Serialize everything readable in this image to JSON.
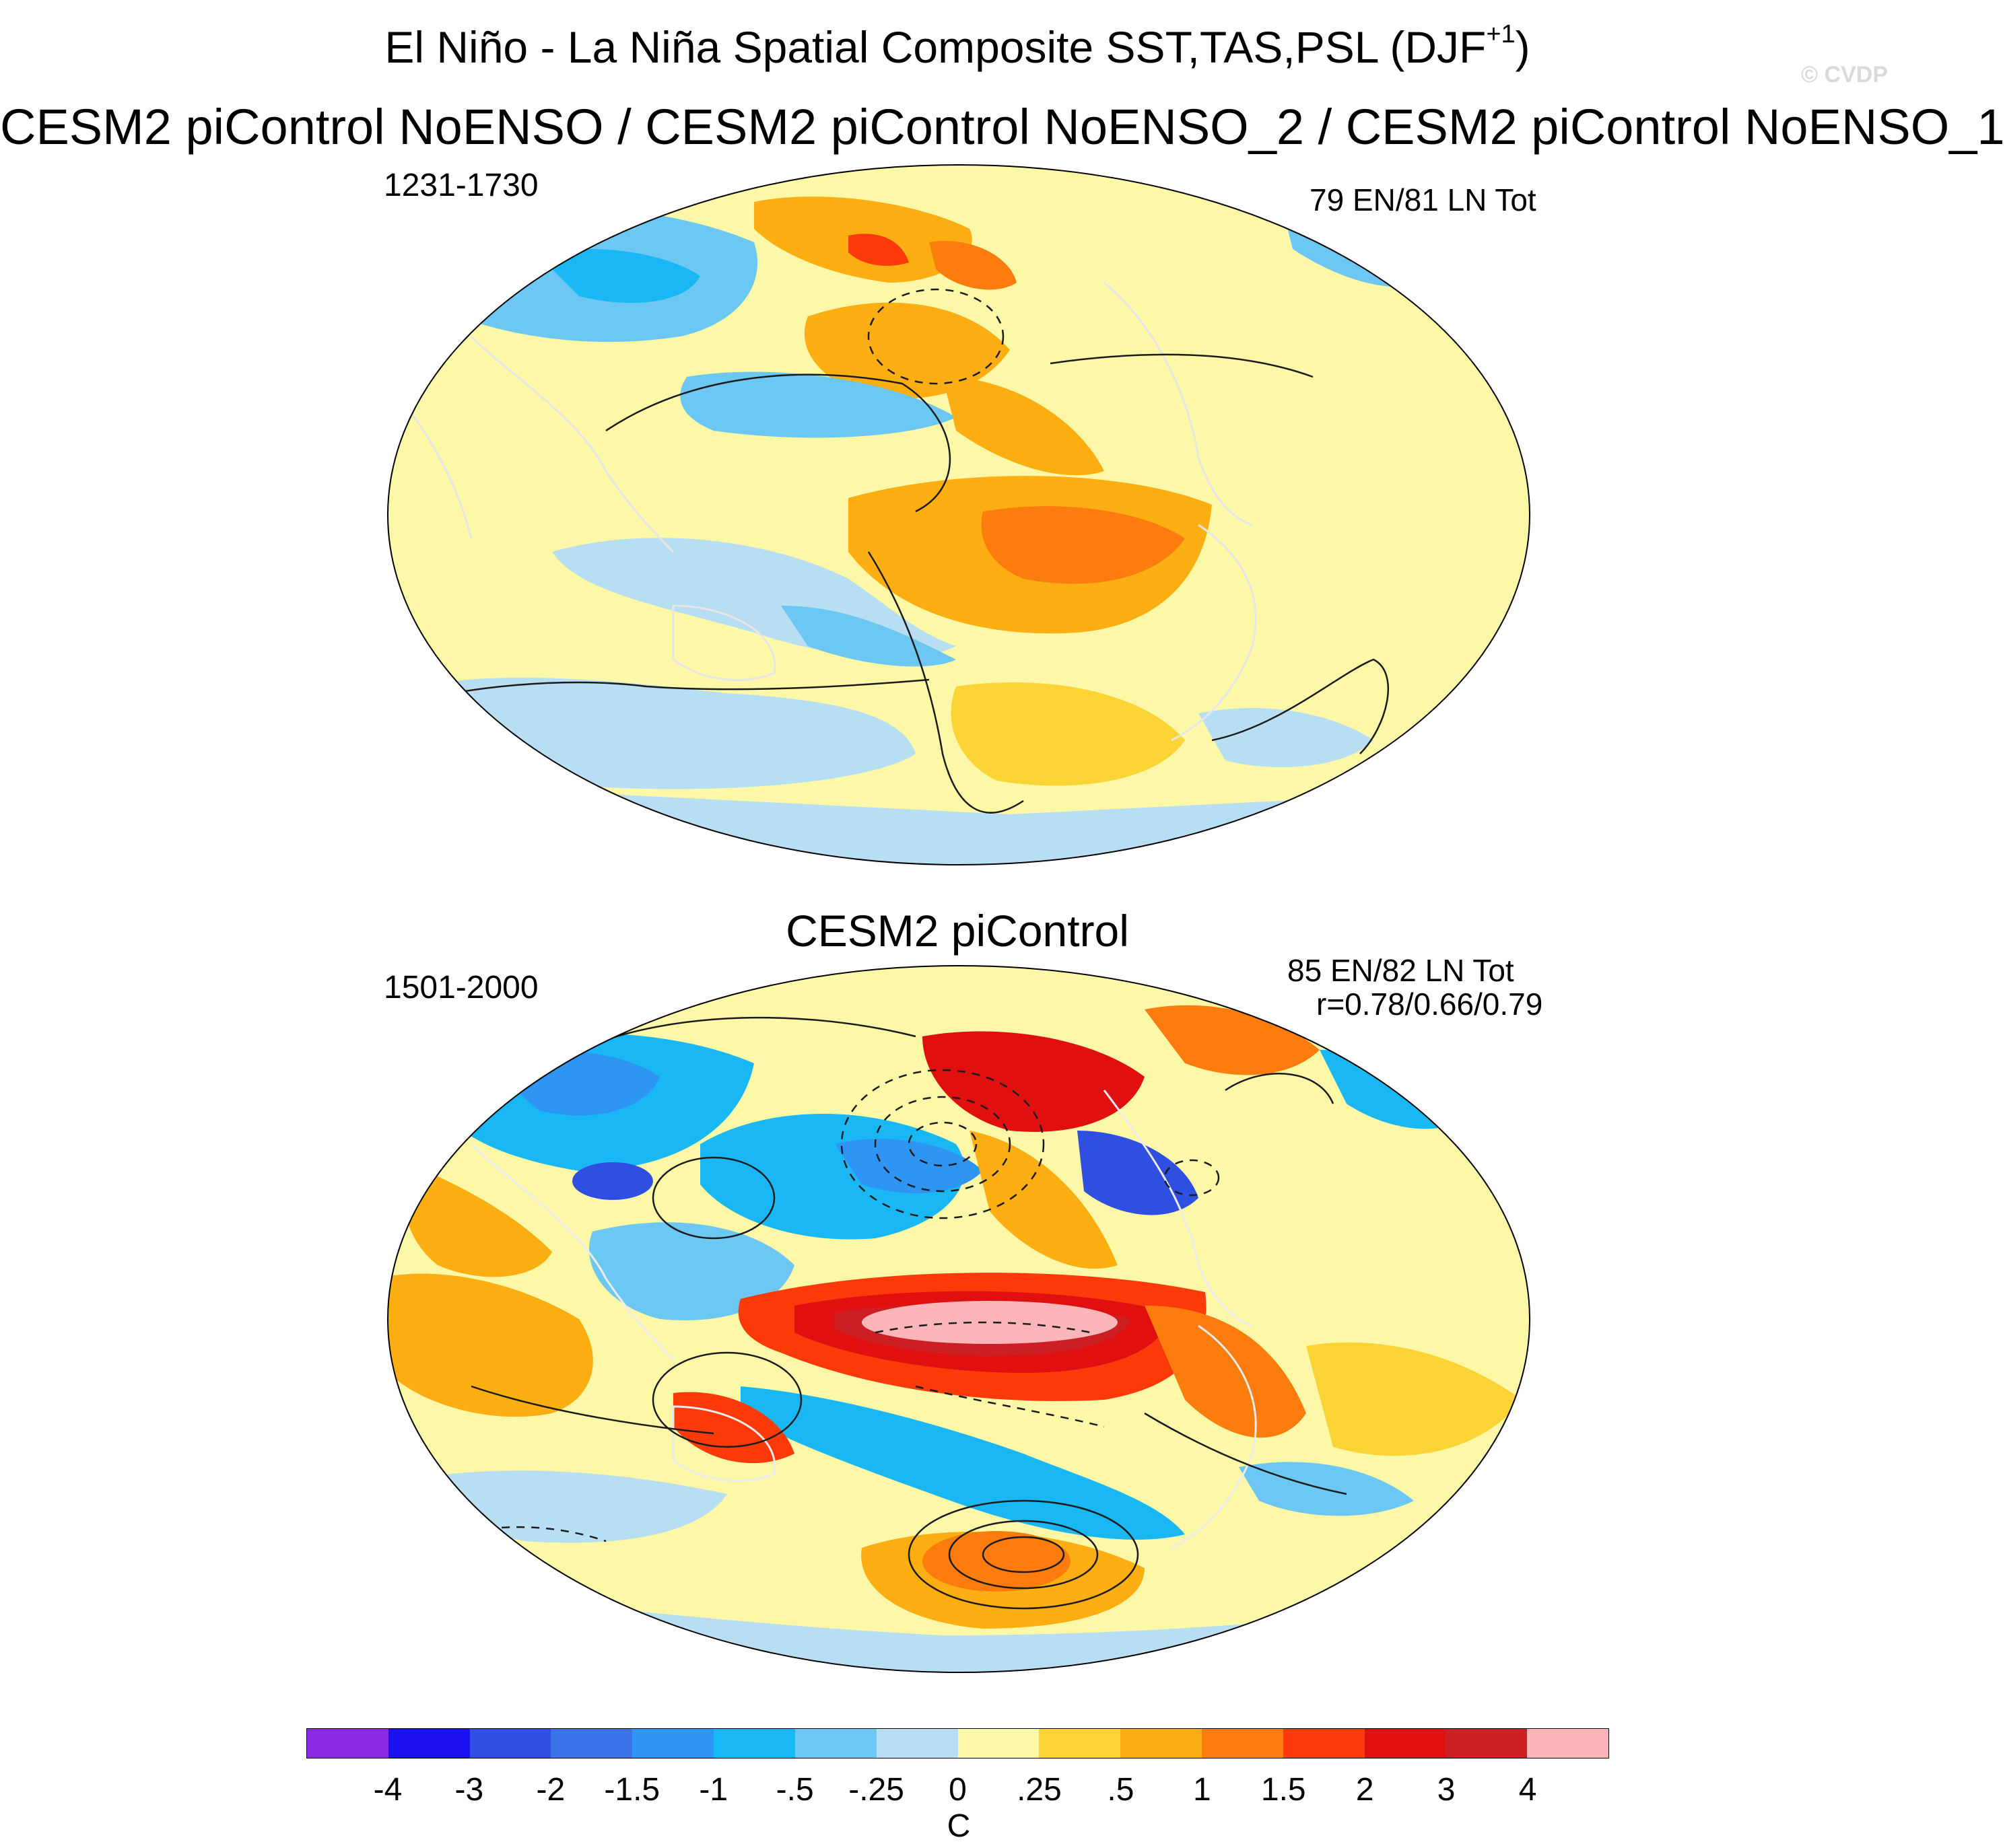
{
  "title": {
    "main": "El Niño - La Niña Spatial Composite SST,TAS,PSL (DJF",
    "sup": "+1",
    "close": ")",
    "subtitle": "CESM2 piControl NoENSO / CESM2 piControl NoENSO_2 / CESM2 piControl NoENSO_1",
    "watermark": "© CVDP"
  },
  "panels": [
    {
      "title": "",
      "years": "1231-1730",
      "count": "79 EN/81 LN Tot",
      "corr": ""
    },
    {
      "title": "CESM2 piControl",
      "years": "1501-2000",
      "count": "85 EN/82 LN Tot",
      "corr": "r=0.78/0.66/0.79"
    }
  ],
  "colorbar": {
    "units": "C",
    "colors": [
      "#8a2be2",
      "#1a10f0",
      "#2f4fe0",
      "#3a74e8",
      "#2f95f5",
      "#19b8f5",
      "#6cc8f2",
      "#b7def2",
      "#fdf8a8",
      "#fdd436",
      "#fcae12",
      "#fc7d0e",
      "#fc3a0a",
      "#e01010",
      "#cc1f24",
      "#fcb6b9"
    ],
    "labels": [
      "-4",
      "-3",
      "-2",
      "-1.5",
      "-1",
      "-.5",
      "-.25",
      "0",
      ".25",
      ".5",
      "1",
      "1.5",
      "2",
      "3",
      "4"
    ]
  }
}
